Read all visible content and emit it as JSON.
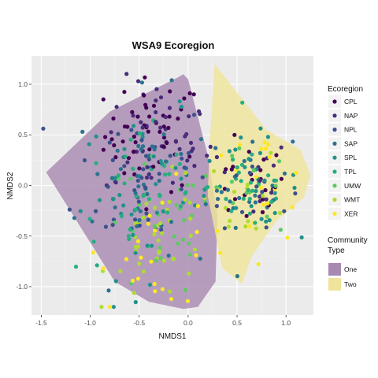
{
  "chart_data": {
    "type": "scatter",
    "title": "WSA9 Ecoregion",
    "xlabel": "NMDS1",
    "ylabel": "NMDS2",
    "xlim": [
      -1.6,
      1.28
    ],
    "ylim": [
      -1.28,
      1.28
    ],
    "x_ticks": [
      -1.5,
      -1.0,
      -0.5,
      0.0,
      0.5,
      1.0
    ],
    "x_tick_labels": [
      "-1.5",
      "-1.0",
      "-0.5",
      "0.0",
      "0.5",
      "1.0"
    ],
    "y_ticks": [
      -1.0,
      -0.5,
      0.0,
      0.5,
      1.0
    ],
    "y_tick_labels": [
      "-1.0",
      "-0.5",
      "0.0",
      "0.5",
      "1.0"
    ],
    "grid": true,
    "legend_placement": "right",
    "color_legend": {
      "title": "Ecoregion",
      "entries": [
        {
          "label": "CPL",
          "color": "#440154"
        },
        {
          "label": "NAP",
          "color": "#472d7b"
        },
        {
          "label": "NPL",
          "color": "#3b528b"
        },
        {
          "label": "SAP",
          "color": "#2c728e"
        },
        {
          "label": "SPL",
          "color": "#21918c"
        },
        {
          "label": "TPL",
          "color": "#28ae80"
        },
        {
          "label": "UMW",
          "color": "#5ec962"
        },
        {
          "label": "WMT",
          "color": "#addc30"
        },
        {
          "label": "XER",
          "color": "#fde725"
        }
      ]
    },
    "fill_legend": {
      "title_line1": "Community",
      "title_line2": "Type",
      "entries": [
        {
          "label": "One",
          "color": "#a88ab1"
        },
        {
          "label": "Two",
          "color": "#efe49a"
        }
      ]
    },
    "hulls": [
      {
        "name": "One",
        "color": "#a88ab1",
        "points": [
          [
            -1.45,
            0.13
          ],
          [
            -0.8,
            0.73
          ],
          [
            -0.1,
            1.07
          ],
          [
            -0.05,
            1.1
          ],
          [
            0.0,
            1.05
          ],
          [
            0.2,
            0.3
          ],
          [
            0.3,
            -0.3
          ],
          [
            0.28,
            -0.95
          ],
          [
            0.1,
            -1.2
          ],
          [
            -0.05,
            -1.22
          ],
          [
            -0.4,
            -1.15
          ],
          [
            -0.75,
            -0.95
          ]
        ]
      },
      {
        "name": "Two",
        "color": "#efe49a",
        "points": [
          [
            0.27,
            1.2
          ],
          [
            0.8,
            0.55
          ],
          [
            1.15,
            0.35
          ],
          [
            1.25,
            0.1
          ],
          [
            1.18,
            -0.12
          ],
          [
            0.9,
            -0.35
          ],
          [
            0.65,
            -0.7
          ],
          [
            0.55,
            -0.97
          ],
          [
            0.35,
            -0.82
          ],
          [
            0.2,
            -0.1
          ],
          [
            0.22,
            0.4
          ]
        ]
      }
    ],
    "clusters": [
      {
        "color_index": 0,
        "n": 55,
        "cx": -0.35,
        "cy": 0.5,
        "sx": 0.25,
        "sy": 0.28
      },
      {
        "color_index": 0,
        "n": 22,
        "cx": 0.6,
        "cy": 0.0,
        "sx": 0.2,
        "sy": 0.2
      },
      {
        "color_index": 1,
        "n": 45,
        "cx": -0.3,
        "cy": 0.45,
        "sx": 0.28,
        "sy": 0.3
      },
      {
        "color_index": 1,
        "n": 14,
        "cx": 0.65,
        "cy": 0.08,
        "sx": 0.2,
        "sy": 0.2
      },
      {
        "color_index": 2,
        "n": 40,
        "cx": -0.45,
        "cy": 0.1,
        "sx": 0.35,
        "sy": 0.4
      },
      {
        "color_index": 2,
        "n": 12,
        "cx": 0.6,
        "cy": 0.0,
        "sx": 0.22,
        "sy": 0.2
      },
      {
        "color_index": 3,
        "n": 45,
        "cx": -0.45,
        "cy": 0.0,
        "sx": 0.35,
        "sy": 0.45
      },
      {
        "color_index": 3,
        "n": 20,
        "cx": 0.62,
        "cy": 0.05,
        "sx": 0.22,
        "sy": 0.22
      },
      {
        "color_index": 4,
        "n": 40,
        "cx": -0.4,
        "cy": -0.1,
        "sx": 0.35,
        "sy": 0.4
      },
      {
        "color_index": 4,
        "n": 25,
        "cx": 0.68,
        "cy": 0.05,
        "sx": 0.22,
        "sy": 0.22
      },
      {
        "color_index": 5,
        "n": 35,
        "cx": -0.45,
        "cy": -0.1,
        "sx": 0.35,
        "sy": 0.38
      },
      {
        "color_index": 5,
        "n": 25,
        "cx": 0.65,
        "cy": 0.0,
        "sx": 0.22,
        "sy": 0.25
      },
      {
        "color_index": 6,
        "n": 30,
        "cx": -0.3,
        "cy": -0.45,
        "sx": 0.3,
        "sy": 0.35
      },
      {
        "color_index": 6,
        "n": 15,
        "cx": 0.62,
        "cy": -0.1,
        "sx": 0.22,
        "sy": 0.22
      },
      {
        "color_index": 7,
        "n": 40,
        "cx": -0.25,
        "cy": -0.55,
        "sx": 0.28,
        "sy": 0.3
      },
      {
        "color_index": 7,
        "n": 15,
        "cx": 0.6,
        "cy": -0.1,
        "sx": 0.22,
        "sy": 0.22
      },
      {
        "color_index": 8,
        "n": 22,
        "cx": -0.3,
        "cy": -0.6,
        "sx": 0.3,
        "sy": 0.3
      },
      {
        "color_index": 8,
        "n": 22,
        "cx": 0.7,
        "cy": -0.05,
        "sx": 0.28,
        "sy": 0.3
      }
    ]
  }
}
